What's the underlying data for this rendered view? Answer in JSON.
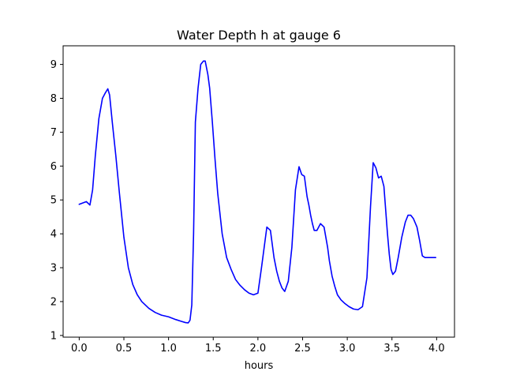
{
  "chart_data": {
    "type": "line",
    "title": "Water Depth h at gauge 6",
    "xlabel": "hours",
    "ylabel": "",
    "xlim": [
      -0.18,
      4.2
    ],
    "ylim": [
      0.95,
      9.55
    ],
    "grid": false,
    "xticks": [
      0.0,
      0.5,
      1.0,
      1.5,
      2.0,
      2.5,
      3.0,
      3.5,
      4.0
    ],
    "xtick_labels": [
      "0.0",
      "0.5",
      "1.0",
      "1.5",
      "2.0",
      "2.5",
      "3.0",
      "3.5",
      "4.0"
    ],
    "yticks": [
      1,
      2,
      3,
      4,
      5,
      6,
      7,
      8,
      9
    ],
    "ytick_labels": [
      "1",
      "2",
      "3",
      "4",
      "5",
      "6",
      "7",
      "8",
      "9"
    ],
    "series": [
      {
        "color": "#0000ff",
        "x": [
          0.0,
          0.05,
          0.08,
          0.12,
          0.15,
          0.18,
          0.22,
          0.26,
          0.29,
          0.32,
          0.34,
          0.37,
          0.41,
          0.45,
          0.5,
          0.55,
          0.6,
          0.65,
          0.7,
          0.78,
          0.85,
          0.92,
          1.0,
          1.08,
          1.14,
          1.19,
          1.22,
          1.24,
          1.26,
          1.28,
          1.3,
          1.33,
          1.36,
          1.39,
          1.41,
          1.44,
          1.46,
          1.49,
          1.52,
          1.55,
          1.6,
          1.65,
          1.7,
          1.75,
          1.8,
          1.85,
          1.9,
          1.95,
          2.0,
          2.04,
          2.07,
          2.1,
          2.14,
          2.18,
          2.21,
          2.24,
          2.27,
          2.3,
          2.34,
          2.38,
          2.42,
          2.46,
          2.49,
          2.52,
          2.55,
          2.57,
          2.59,
          2.61,
          2.63,
          2.66,
          2.7,
          2.74,
          2.78,
          2.8,
          2.83,
          2.86,
          2.89,
          2.93,
          2.97,
          3.02,
          3.07,
          3.12,
          3.17,
          3.22,
          3.26,
          3.29,
          3.32,
          3.35,
          3.38,
          3.41,
          3.43,
          3.45,
          3.47,
          3.49,
          3.51,
          3.54,
          3.57,
          3.61,
          3.65,
          3.68,
          3.71,
          3.74,
          3.78,
          3.81,
          3.84,
          3.87,
          3.9,
          3.93,
          3.96,
          3.99
        ],
        "y": [
          4.87,
          4.92,
          4.95,
          4.85,
          5.3,
          6.3,
          7.4,
          8.0,
          8.15,
          8.28,
          8.1,
          7.3,
          6.3,
          5.2,
          3.9,
          3.0,
          2.5,
          2.2,
          2.0,
          1.8,
          1.68,
          1.6,
          1.55,
          1.47,
          1.42,
          1.38,
          1.37,
          1.45,
          1.9,
          4.0,
          7.3,
          8.3,
          9.0,
          9.1,
          9.1,
          8.7,
          8.3,
          7.3,
          6.2,
          5.2,
          4.0,
          3.3,
          2.95,
          2.65,
          2.48,
          2.35,
          2.25,
          2.2,
          2.25,
          3.0,
          3.6,
          4.2,
          4.1,
          3.3,
          2.9,
          2.6,
          2.4,
          2.3,
          2.6,
          3.6,
          5.3,
          5.98,
          5.75,
          5.7,
          5.1,
          4.85,
          4.55,
          4.3,
          4.1,
          4.1,
          4.3,
          4.2,
          3.6,
          3.2,
          2.75,
          2.45,
          2.2,
          2.05,
          1.95,
          1.85,
          1.78,
          1.76,
          1.85,
          2.7,
          4.8,
          6.1,
          5.95,
          5.65,
          5.7,
          5.4,
          4.7,
          4.0,
          3.4,
          2.95,
          2.8,
          2.9,
          3.3,
          3.9,
          4.35,
          4.55,
          4.55,
          4.45,
          4.2,
          3.8,
          3.35,
          3.3,
          3.3,
          3.3,
          3.3,
          3.3
        ]
      }
    ]
  }
}
